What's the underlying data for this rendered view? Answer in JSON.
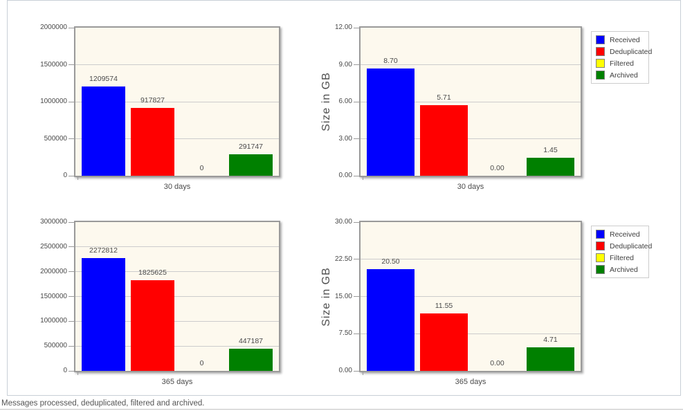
{
  "page": {
    "caption": "Messages processed, deduplicated, filtered and archived."
  },
  "colors": {
    "received": "#0000ff",
    "deduplicated": "#ff0000",
    "filtered": "#ffff00",
    "archived": "#008000",
    "plot_background": "#fdf9ee",
    "gridline": "#cccccc",
    "plot_border": "#9a9a9a"
  },
  "legend": {
    "position": "top-right",
    "items": [
      {
        "label": "Received",
        "color": "#0000ff"
      },
      {
        "label": "Deduplicated",
        "color": "#ff0000"
      },
      {
        "label": "Filtered",
        "color": "#ffff00"
      },
      {
        "label": "Archived",
        "color": "#008000"
      }
    ]
  },
  "chart_data": [
    {
      "id": "messages-30-days",
      "type": "bar",
      "title": "",
      "xlabel": "30 days",
      "ylabel": "",
      "ylim": [
        0,
        2000000
      ],
      "yticks": [
        0,
        500000,
        1000000,
        1500000,
        2000000
      ],
      "ytick_labels": [
        "0",
        "500000",
        "1000000",
        "1500000",
        "2000000"
      ],
      "categories": [
        "Received",
        "Deduplicated",
        "Filtered",
        "Archived"
      ],
      "values": [
        1209574,
        917827,
        0,
        291747
      ],
      "value_labels": [
        "1209574",
        "917827",
        "0",
        "291747"
      ],
      "grid": true,
      "legend": false
    },
    {
      "id": "size-gb-30-days",
      "type": "bar",
      "title": "",
      "xlabel": "30 days",
      "ylabel": "Size in GB",
      "ylim": [
        0,
        12
      ],
      "yticks": [
        0,
        3,
        6,
        9,
        12
      ],
      "ytick_labels": [
        "0.00",
        "3.00",
        "6.00",
        "9.00",
        "12.00"
      ],
      "categories": [
        "Received",
        "Deduplicated",
        "Filtered",
        "Archived"
      ],
      "values": [
        8.7,
        5.71,
        0.0,
        1.45
      ],
      "value_labels": [
        "8.70",
        "5.71",
        "0.00",
        "1.45"
      ],
      "grid": true,
      "legend": true
    },
    {
      "id": "messages-365-days",
      "type": "bar",
      "title": "",
      "xlabel": "365 days",
      "ylabel": "",
      "ylim": [
        0,
        3000000
      ],
      "yticks": [
        0,
        500000,
        1000000,
        1500000,
        2000000,
        2500000,
        3000000
      ],
      "ytick_labels": [
        "0",
        "500000",
        "1000000",
        "1500000",
        "2000000",
        "2500000",
        "3000000"
      ],
      "categories": [
        "Received",
        "Deduplicated",
        "Filtered",
        "Archived"
      ],
      "values": [
        2272812,
        1825625,
        0,
        447187
      ],
      "value_labels": [
        "2272812",
        "1825625",
        "0",
        "447187"
      ],
      "grid": true,
      "legend": false
    },
    {
      "id": "size-gb-365-days",
      "type": "bar",
      "title": "",
      "xlabel": "365 days",
      "ylabel": "Size in GB",
      "ylim": [
        0,
        30
      ],
      "yticks": [
        0,
        7.5,
        15,
        22.5,
        30
      ],
      "ytick_labels": [
        "0.00",
        "7.50",
        "15.00",
        "22.50",
        "30.00"
      ],
      "categories": [
        "Received",
        "Deduplicated",
        "Filtered",
        "Archived"
      ],
      "values": [
        20.5,
        11.55,
        0.0,
        4.71
      ],
      "value_labels": [
        "20.50",
        "11.55",
        "0.00",
        "4.71"
      ],
      "grid": true,
      "legend": true
    }
  ]
}
